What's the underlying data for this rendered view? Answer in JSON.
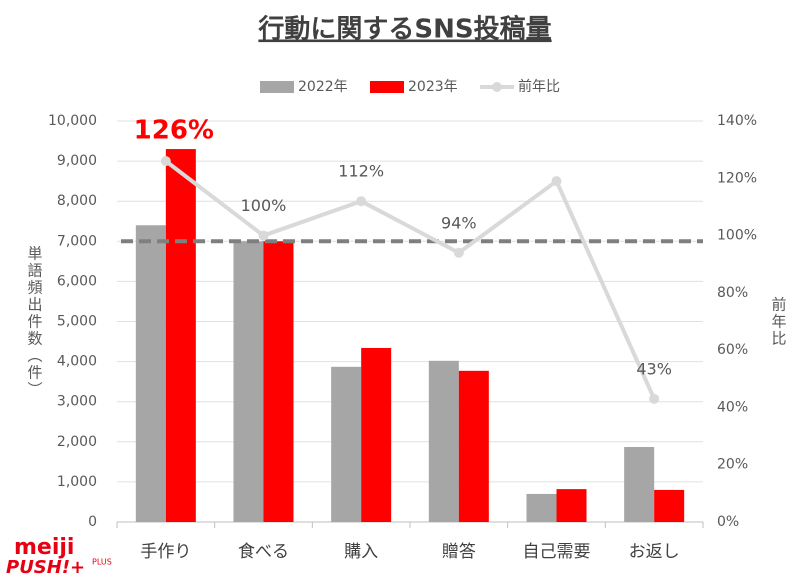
{
  "chart_data": {
    "type": "bar_line",
    "title": "行動に関するSNS投稿量",
    "categories": [
      "手作り",
      "食べる",
      "購入",
      "贈答",
      "自己需要",
      "お返し"
    ],
    "series": [
      {
        "name": "2022年",
        "color": "#a6a6a6",
        "type": "bar",
        "values": [
          7400,
          7000,
          3870,
          4020,
          700,
          1870
        ]
      },
      {
        "name": "2023年",
        "color": "#ff0000",
        "type": "bar",
        "values": [
          9300,
          7000,
          4340,
          3770,
          820,
          800
        ]
      },
      {
        "name": "前年比",
        "color": "#d9d9d9",
        "type": "line",
        "axis": "y2",
        "values": [
          126,
          100,
          112,
          94,
          119,
          43
        ],
        "value_labels": [
          "126%",
          "100%",
          "112%",
          "94%",
          null,
          "43%"
        ],
        "value_label_colors": [
          "#ff0000",
          "#595959",
          "#595959",
          "#595959",
          null,
          "#595959"
        ]
      }
    ],
    "ylabel": "単語頻出件数（件）",
    "y2label": "前年比",
    "ylim": [
      0,
      10000
    ],
    "yticks": [
      0,
      {
        "value": 1000,
        "label": "1,000"
      },
      {
        "value": 2000,
        "label": "2,000"
      },
      {
        "value": 3000,
        "label": "3,000"
      },
      {
        "value": 4000,
        "label": "4,000"
      },
      {
        "value": 5000,
        "label": "5,000"
      },
      {
        "value": 6000,
        "label": "6,000"
      },
      {
        "value": 7000,
        "label": "7,000"
      },
      {
        "value": 8000,
        "label": "8,000"
      },
      {
        "value": 9000,
        "label": "9,000"
      },
      {
        "value": 10000,
        "label": "10,000"
      }
    ],
    "y2lim": [
      0,
      140
    ],
    "y2ticks": [
      {
        "value": 0,
        "label": "0%"
      },
      {
        "value": 20,
        "label": "20%"
      },
      {
        "value": 40,
        "label": "40%"
      },
      {
        "value": 60,
        "label": "60%"
      },
      {
        "value": 80,
        "label": "80%"
      },
      {
        "value": 100,
        "label": "100%"
      },
      {
        "value": 120,
        "label": "120%"
      },
      {
        "value": 140,
        "label": "140%"
      }
    ],
    "reference_line": {
      "value": 7000,
      "color": "#7f7f7f"
    },
    "grid": true,
    "legend": "top",
    "logo": {
      "brand": "meiji",
      "name": "PUSH!+",
      "tag": "PLUS"
    }
  }
}
